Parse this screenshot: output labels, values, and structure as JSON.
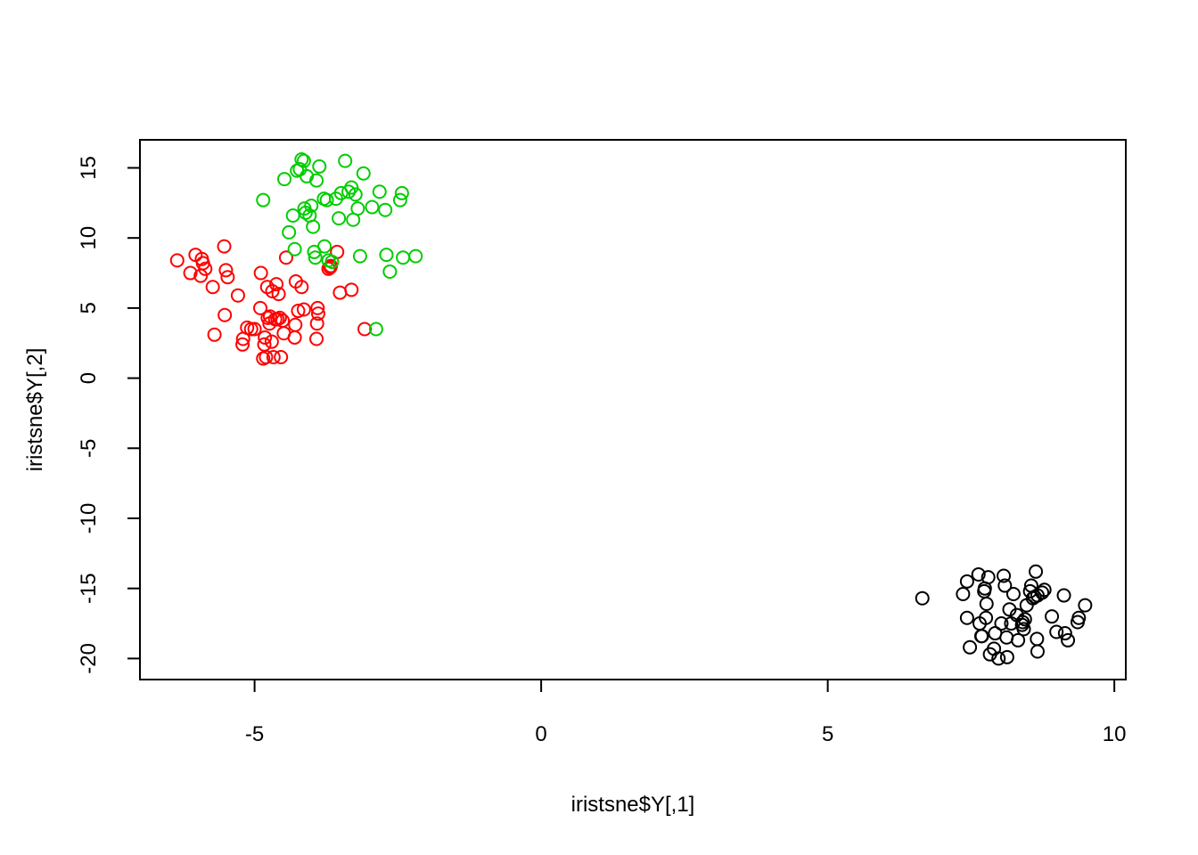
{
  "chart_data": {
    "type": "scatter",
    "title": "",
    "xlabel": "iristsne$Y[,1]",
    "ylabel": "iristsne$Y[,2]",
    "xlim": [
      -7,
      10.2
    ],
    "ylim": [
      -21.5,
      17
    ],
    "xticks": [
      -5,
      0,
      5,
      10
    ],
    "xtick_labels": [
      "-5",
      "0",
      "5",
      "10"
    ],
    "yticks": [
      -20,
      -15,
      -10,
      -5,
      0,
      5,
      10,
      15
    ],
    "ytick_labels": [
      "-20",
      "-15",
      "-10",
      "-5",
      "0",
      "5",
      "10",
      "15"
    ],
    "grid": false,
    "legend": "none",
    "marker": "open-circle",
    "series": [
      {
        "color": "#000000",
        "x": [
          6.65,
          7.36,
          7.43,
          7.43,
          7.48,
          7.63,
          7.65,
          7.68,
          7.69,
          7.73,
          7.74,
          7.76,
          7.77,
          7.8,
          7.83,
          7.9,
          7.92,
          7.98,
          8.03,
          8.07,
          8.09,
          8.12,
          8.13,
          8.17,
          8.2,
          8.24,
          8.3,
          8.32,
          8.39,
          8.4,
          8.42,
          8.44,
          8.47,
          8.53,
          8.55,
          8.58,
          8.61,
          8.63,
          8.65,
          8.66,
          8.66,
          8.74,
          8.78,
          8.91,
          8.99,
          9.12,
          9.14,
          9.19,
          9.36,
          9.38,
          9.49
        ],
        "y": [
          -15.7,
          -15.4,
          -14.5,
          -17.1,
          -19.2,
          -14.0,
          -17.5,
          -18.4,
          -18.4,
          -15.2,
          -15.0,
          -17.1,
          -16.1,
          -14.2,
          -19.7,
          -19.3,
          -18.2,
          -20.0,
          -17.5,
          -14.1,
          -14.8,
          -18.5,
          -19.9,
          -16.5,
          -17.5,
          -15.4,
          -16.9,
          -18.7,
          -17.6,
          -17.4,
          -17.9,
          -17.2,
          -16.2,
          -15.2,
          -14.8,
          -15.7,
          -15.6,
          -13.8,
          -18.6,
          -19.5,
          -15.5,
          -15.3,
          -15.1,
          -17.0,
          -18.1,
          -15.5,
          -18.2,
          -18.7,
          -17.4,
          -17.1,
          -16.2
        ]
      },
      {
        "color": "#ff0000",
        "x": [
          -6.35,
          -6.12,
          -6.03,
          -5.94,
          -5.92,
          -5.9,
          -5.86,
          -5.73,
          -5.7,
          -5.53,
          -5.52,
          -5.5,
          -5.47,
          -5.29,
          -5.21,
          -5.2,
          -5.13,
          -5.06,
          -5.0,
          -4.9,
          -4.89,
          -4.85,
          -4.83,
          -4.82,
          -4.8,
          -4.78,
          -4.77,
          -4.74,
          -4.73,
          -4.7,
          -4.69,
          -4.67,
          -4.64,
          -4.62,
          -4.6,
          -4.58,
          -4.56,
          -4.54,
          -4.51,
          -4.49,
          -4.45,
          -4.3,
          -4.29,
          -4.28,
          -4.24,
          -4.18,
          -4.14,
          -3.92,
          -3.91,
          -3.9,
          -3.89,
          -3.71,
          -3.68,
          -3.67,
          -3.56,
          -3.51,
          -3.31,
          -3.08
        ],
        "y": [
          8.4,
          7.5,
          8.8,
          7.3,
          8.5,
          8.2,
          7.8,
          6.5,
          3.1,
          9.4,
          4.5,
          7.7,
          7.2,
          5.9,
          2.4,
          2.8,
          3.6,
          3.5,
          3.5,
          5.0,
          7.5,
          1.4,
          2.4,
          2.9,
          1.5,
          6.5,
          4.3,
          3.9,
          4.4,
          2.6,
          6.2,
          1.5,
          4.2,
          6.7,
          4.2,
          6.0,
          4.3,
          1.5,
          4.1,
          3.2,
          8.6,
          2.9,
          3.8,
          6.9,
          4.8,
          6.5,
          4.9,
          2.8,
          3.9,
          5.0,
          4.6,
          7.8,
          7.9,
          8.0,
          9.0,
          6.1,
          6.3,
          3.5
        ]
      },
      {
        "color": "#00cd00",
        "x": [
          -4.85,
          -4.48,
          -4.4,
          -4.33,
          -4.3,
          -4.26,
          -4.21,
          -4.18,
          -4.14,
          -4.13,
          -4.11,
          -4.09,
          -4.04,
          -4.01,
          -3.98,
          -3.96,
          -3.94,
          -3.92,
          -3.87,
          -3.79,
          -3.78,
          -3.74,
          -3.71,
          -3.65,
          -3.58,
          -3.53,
          -3.49,
          -3.42,
          -3.36,
          -3.31,
          -3.28,
          -3.24,
          -3.2,
          -3.16,
          -3.1,
          -2.95,
          -2.88,
          -2.82,
          -2.72,
          -2.7,
          -2.64,
          -2.46,
          -2.43,
          -2.41,
          -2.19
        ],
        "y": [
          12.7,
          14.2,
          10.4,
          11.6,
          9.2,
          14.8,
          14.9,
          15.6,
          15.5,
          12.1,
          11.8,
          14.4,
          11.6,
          12.3,
          10.8,
          9.0,
          8.6,
          14.1,
          15.1,
          12.8,
          9.4,
          12.7,
          8.4,
          8.3,
          12.8,
          11.4,
          13.2,
          15.5,
          13.3,
          13.6,
          11.3,
          13.1,
          12.1,
          8.7,
          14.6,
          12.2,
          3.5,
          13.3,
          12.0,
          8.8,
          7.6,
          12.7,
          13.2,
          8.6,
          8.7
        ]
      }
    ]
  }
}
